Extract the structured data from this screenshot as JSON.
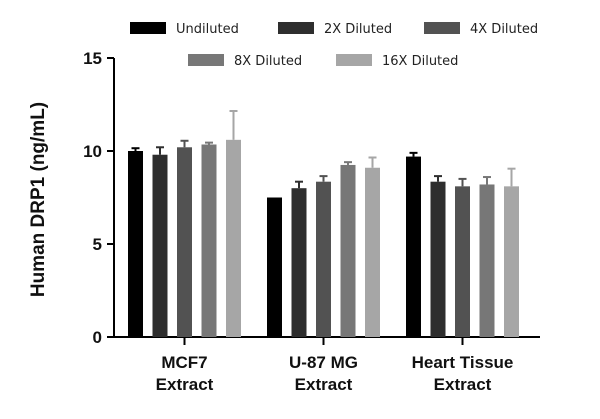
{
  "chart_data": {
    "type": "bar",
    "title": "",
    "xlabel": "",
    "ylabel": "Human DRP1 (ng/mL)",
    "ylim": [
      0,
      15
    ],
    "yticks": [
      "0",
      "5",
      "10",
      "15"
    ],
    "ytick_values": [
      0,
      5,
      10,
      15
    ],
    "categories": [
      [
        "MCF7",
        "Extract"
      ],
      [
        "U-87 MG",
        "Extract"
      ],
      [
        "Heart Tissue",
        "Extract"
      ]
    ],
    "series": [
      {
        "name": "Undiluted",
        "color": "#000000",
        "values": [
          10.0,
          7.5,
          9.7
        ],
        "errors": [
          0.15,
          0.0,
          0.2
        ]
      },
      {
        "name": "2X Diluted",
        "color": "#2e2e2e",
        "values": [
          9.8,
          8.0,
          8.35
        ],
        "errors": [
          0.4,
          0.35,
          0.3
        ]
      },
      {
        "name": "4X Diluted",
        "color": "#525252",
        "values": [
          10.2,
          8.35,
          8.1
        ],
        "errors": [
          0.35,
          0.3,
          0.4
        ]
      },
      {
        "name": "8X Diluted",
        "color": "#777777",
        "values": [
          10.35,
          9.25,
          8.2
        ],
        "errors": [
          0.1,
          0.15,
          0.4
        ]
      },
      {
        "name": "16X Diluted",
        "color": "#a6a6a6",
        "values": [
          10.6,
          9.1,
          8.1
        ],
        "errors": [
          1.55,
          0.55,
          0.95
        ]
      }
    ],
    "legend_position": "top",
    "grid": false
  }
}
